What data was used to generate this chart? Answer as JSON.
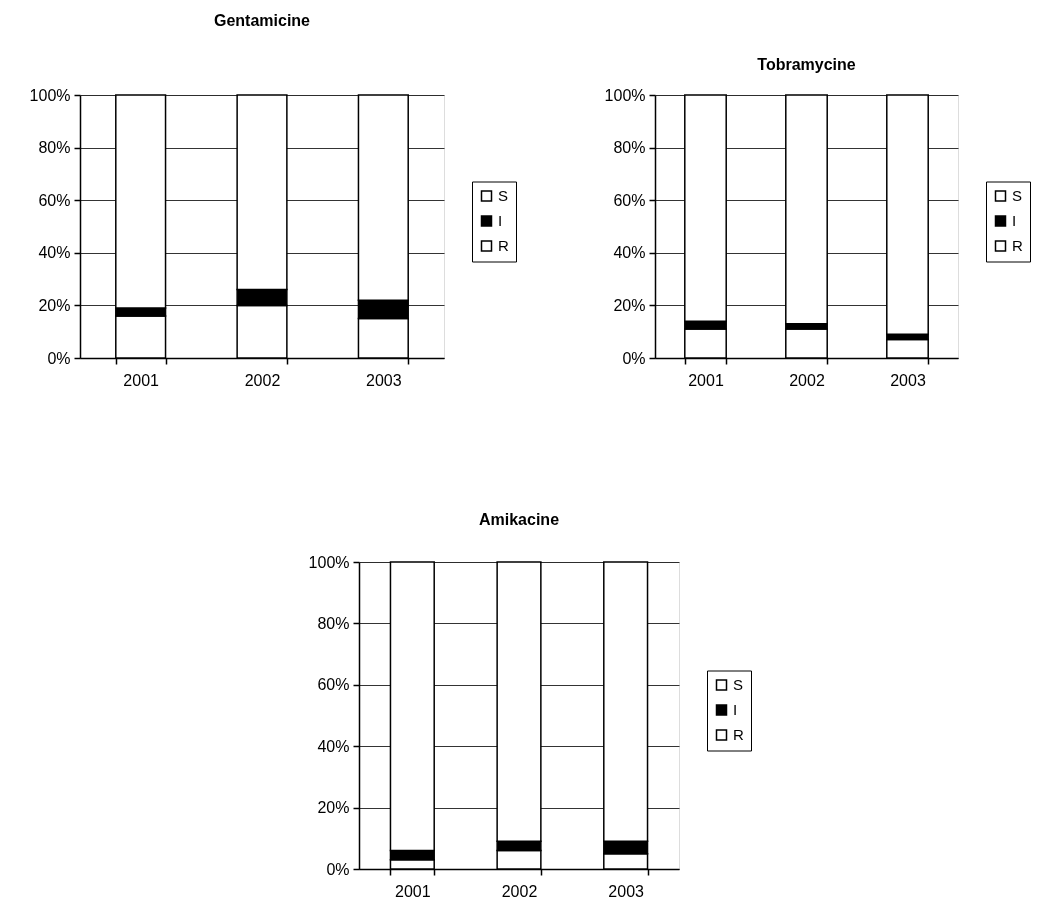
{
  "chart_data": [
    {
      "type": "bar",
      "title": "Gentamicine",
      "stacked": true,
      "categories": [
        "2001",
        "2002",
        "2003"
      ],
      "series": [
        {
          "name": "R",
          "color": "#ffffff",
          "values": [
            16,
            20,
            15
          ]
        },
        {
          "name": "I",
          "color": "#000000",
          "values": [
            3,
            6,
            7
          ]
        },
        {
          "name": "S",
          "color": "#ffffff",
          "values": [
            81,
            74,
            78
          ]
        }
      ],
      "ylim": [
        0,
        100
      ],
      "yticks": [
        {
          "value": 0,
          "label": "0%"
        },
        {
          "value": 20,
          "label": "20%"
        },
        {
          "value": 40,
          "label": "40%"
        },
        {
          "value": 60,
          "label": "60%"
        },
        {
          "value": 80,
          "label": "80%"
        },
        {
          "value": 100,
          "label": "100%"
        }
      ],
      "grid": "y",
      "legend": "right"
    },
    {
      "type": "bar",
      "title": "Tobramycine",
      "stacked": true,
      "categories": [
        "2001",
        "2002",
        "2003"
      ],
      "series": [
        {
          "name": "R",
          "color": "#ffffff",
          "values": [
            11,
            11,
            7
          ]
        },
        {
          "name": "I",
          "color": "#000000",
          "values": [
            3,
            2,
            2
          ]
        },
        {
          "name": "S",
          "color": "#ffffff",
          "values": [
            86,
            87,
            91
          ]
        }
      ],
      "ylim": [
        0,
        100
      ],
      "yticks": [
        {
          "value": 0,
          "label": "0%"
        },
        {
          "value": 20,
          "label": "20%"
        },
        {
          "value": 40,
          "label": "40%"
        },
        {
          "value": 60,
          "label": "60%"
        },
        {
          "value": 80,
          "label": "80%"
        },
        {
          "value": 100,
          "label": "100%"
        }
      ],
      "grid": "y",
      "legend": "right"
    },
    {
      "type": "bar",
      "title": "Amikacine",
      "stacked": true,
      "categories": [
        "2001",
        "2002",
        "2003"
      ],
      "series": [
        {
          "name": "R",
          "color": "#ffffff",
          "values": [
            3,
            6,
            5
          ]
        },
        {
          "name": "I",
          "color": "#000000",
          "values": [
            3,
            3,
            4
          ]
        },
        {
          "name": "S",
          "color": "#ffffff",
          "values": [
            94,
            91,
            91
          ]
        }
      ],
      "ylim": [
        0,
        100
      ],
      "yticks": [
        {
          "value": 0,
          "label": "0%"
        },
        {
          "value": 20,
          "label": "20%"
        },
        {
          "value": 40,
          "label": "40%"
        },
        {
          "value": 60,
          "label": "60%"
        },
        {
          "value": 80,
          "label": "80%"
        },
        {
          "value": 100,
          "label": "100%"
        }
      ],
      "grid": "y",
      "legend": "right"
    }
  ]
}
